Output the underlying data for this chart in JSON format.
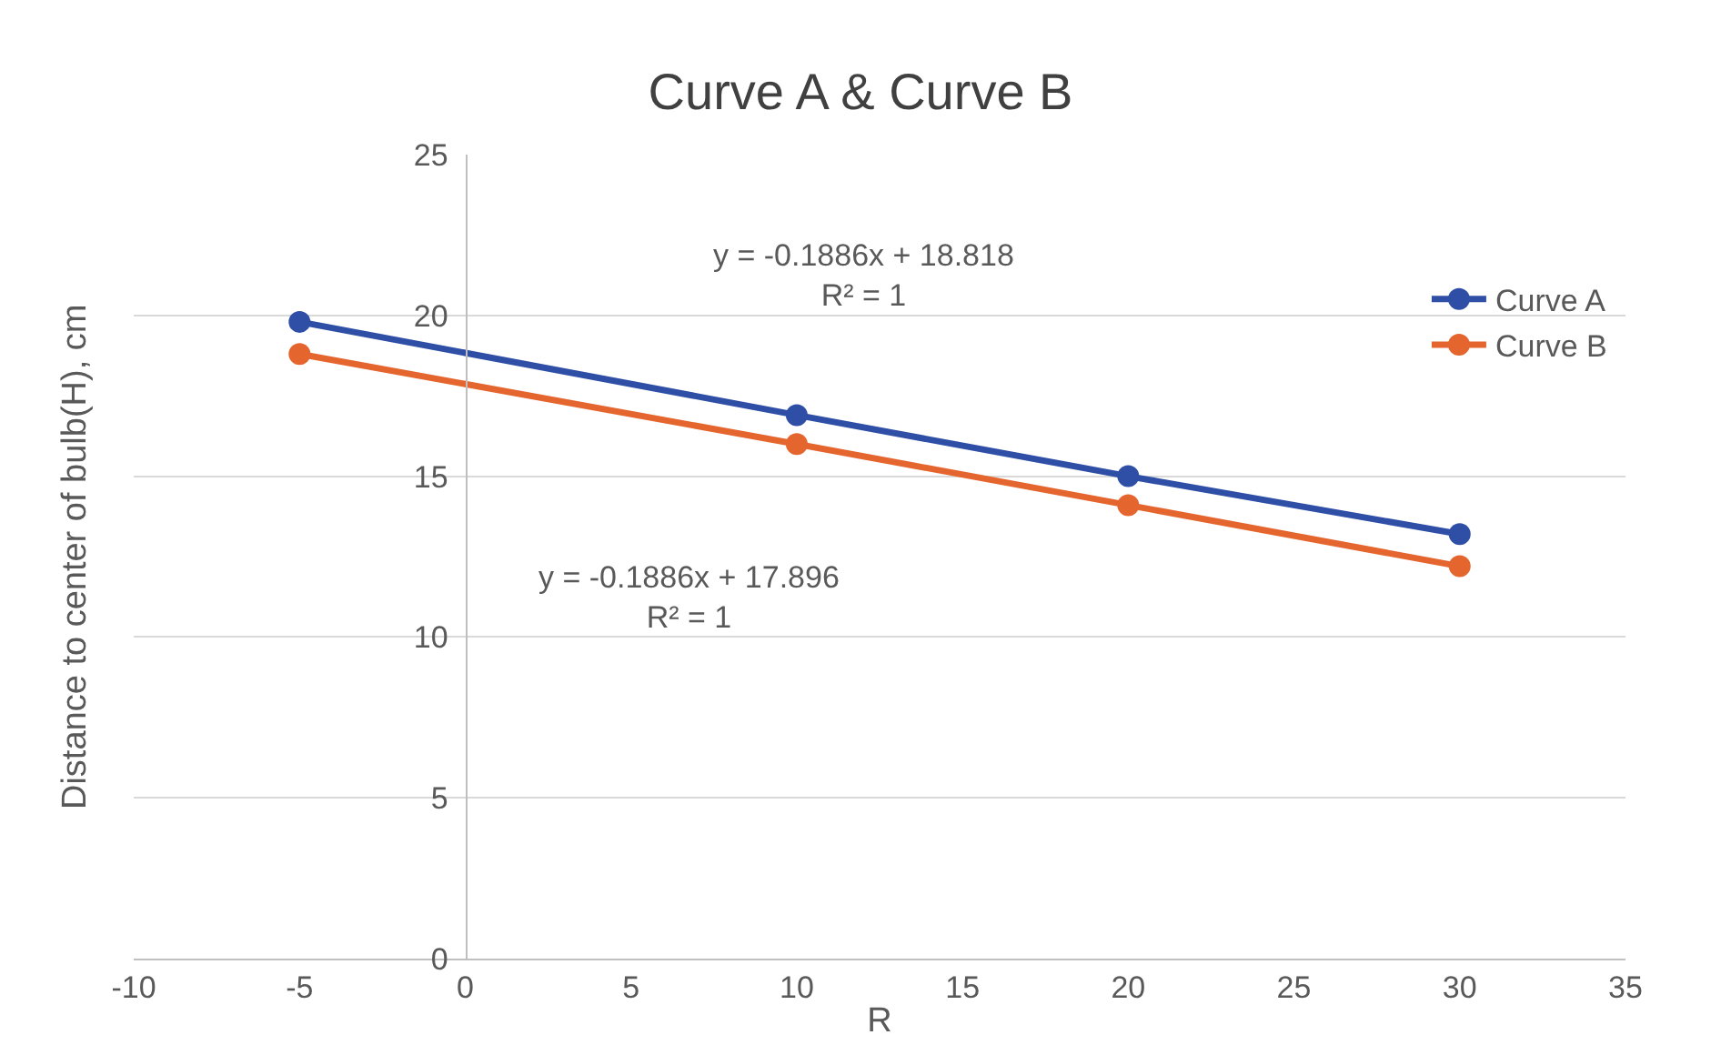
{
  "chart_data": {
    "type": "line",
    "title": "Curve A & Curve B",
    "xlabel": "R",
    "ylabel": "Distance to center of bulb(H), cm",
    "x": [
      -5,
      10,
      20,
      30
    ],
    "series": [
      {
        "name": "Curve A",
        "color": "#2f4fa6",
        "values": [
          19.8,
          16.9,
          15.0,
          13.2
        ]
      },
      {
        "name": "Curve B",
        "color": "#e5652e",
        "values": [
          18.8,
          16.0,
          14.1,
          12.2
        ]
      }
    ],
    "xlim": [
      -10,
      35
    ],
    "xticks": [
      -10,
      -5,
      0,
      5,
      10,
      15,
      20,
      25,
      30,
      35
    ],
    "ylim": [
      0,
      25
    ],
    "yticks": [
      0,
      5,
      10,
      15,
      20,
      25
    ],
    "grid": "y",
    "legend": "top right",
    "marker": "circle",
    "line_style": "solid",
    "annotations": [
      "y = -0.1886x + 18.818\nR² = 1",
      "y = -0.1886x + 17.896\nR² = 1"
    ]
  }
}
